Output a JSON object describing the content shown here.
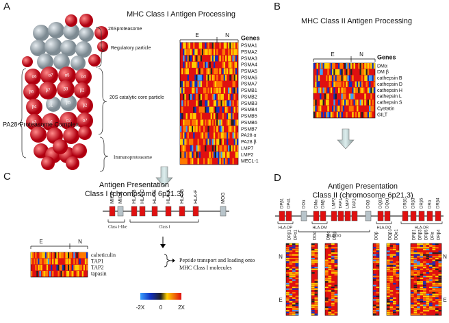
{
  "panels": {
    "a": {
      "letter": "A",
      "title": "MHC Class I Antigen Processing",
      "proteasome_labels": [
        "26Sproteasome",
        "Regulatory particle",
        "20S catalytic core particle",
        "PA28-Proteasome Complex",
        "Immunoproteasome"
      ],
      "subunits": [
        "α6",
        "α7",
        "α5",
        "α4",
        "β6",
        "β7",
        "β3",
        "β2",
        "β4",
        "β1",
        "β5",
        "β2",
        "α3",
        "α1",
        "α2",
        "α7"
      ],
      "heatmap": {
        "e": "E",
        "n": "N",
        "genes_title": "Genes",
        "genes": [
          "PSMA1",
          "PSMA2",
          "PSMA3",
          "PSMA4",
          "PSMA5",
          "PSMA6",
          "PSMA7",
          "PSMB1",
          "PSMB2",
          "PSMB3",
          "PSMB4",
          "PSMB5",
          "PSMB6",
          "PSMB7",
          "PA28 α",
          "PA28 β",
          "LMP7",
          "LMP2",
          "MECL-1"
        ]
      }
    },
    "b": {
      "letter": "B",
      "title": "MHC Class II Antigen Processing",
      "heatmap": {
        "e": "E",
        "n": "N",
        "genes_title": "Genes",
        "genes": [
          "DMα",
          "DM β",
          "cathepsin B",
          "cathepsin D",
          "cathepsin H",
          "cathepsin L",
          "cathepsin S",
          "Cystatin",
          "GILT"
        ]
      }
    },
    "c": {
      "letter": "C",
      "title": "Antigen Presentation",
      "subtitle": "Class I (chromosome 6p21.3)",
      "loci": [
        "MICB",
        "MICA",
        "HLA-B",
        "HLA-C",
        "HLA-E",
        "HLA-A",
        "HLA-G",
        "HLA-F",
        "MOG"
      ],
      "groups": [
        "Class I-like",
        "Class I"
      ],
      "heatmap": {
        "e": "E",
        "n": "N",
        "genes": [
          "calreticulin",
          "TAP1",
          "TAP2",
          "tapasin"
        ]
      },
      "note": "Peptide transport and loading onto MHC Class I molecules"
    },
    "legend": {
      "ticks": [
        {
          "value": -2,
          "label": "-2X"
        },
        0,
        {
          "value": 2,
          "label": "2X"
        }
      ]
    },
    "d": {
      "letter": "D",
      "title": "Antigen Presentation",
      "subtitle": "Class II (chromosome 6p21.3)",
      "loci": [
        "DPβ1",
        "DPα1",
        "DOα",
        "DMα",
        "DMβ",
        "LMP2",
        "TAP1",
        "LMP7",
        "TAP2",
        "DOβ",
        "DQβ1",
        "DQα1",
        "DRβ1",
        "DRβ3",
        "DRβ5",
        "DRα",
        "DRβ4"
      ],
      "groups": [
        "HLA-DP",
        "HLA-DM",
        "HLA-DO",
        "HLA-DQ",
        "HLA-DR"
      ],
      "columns": [
        "DPβ1",
        "DPα1",
        "DOα",
        "DMα",
        "DMβ",
        "DOβ",
        "DQβ1",
        "DQα1",
        "DRβ1",
        "DRβ3",
        "DRβ5",
        "DRα",
        "DRβ4"
      ],
      "n": "N",
      "e": "E"
    }
  }
}
